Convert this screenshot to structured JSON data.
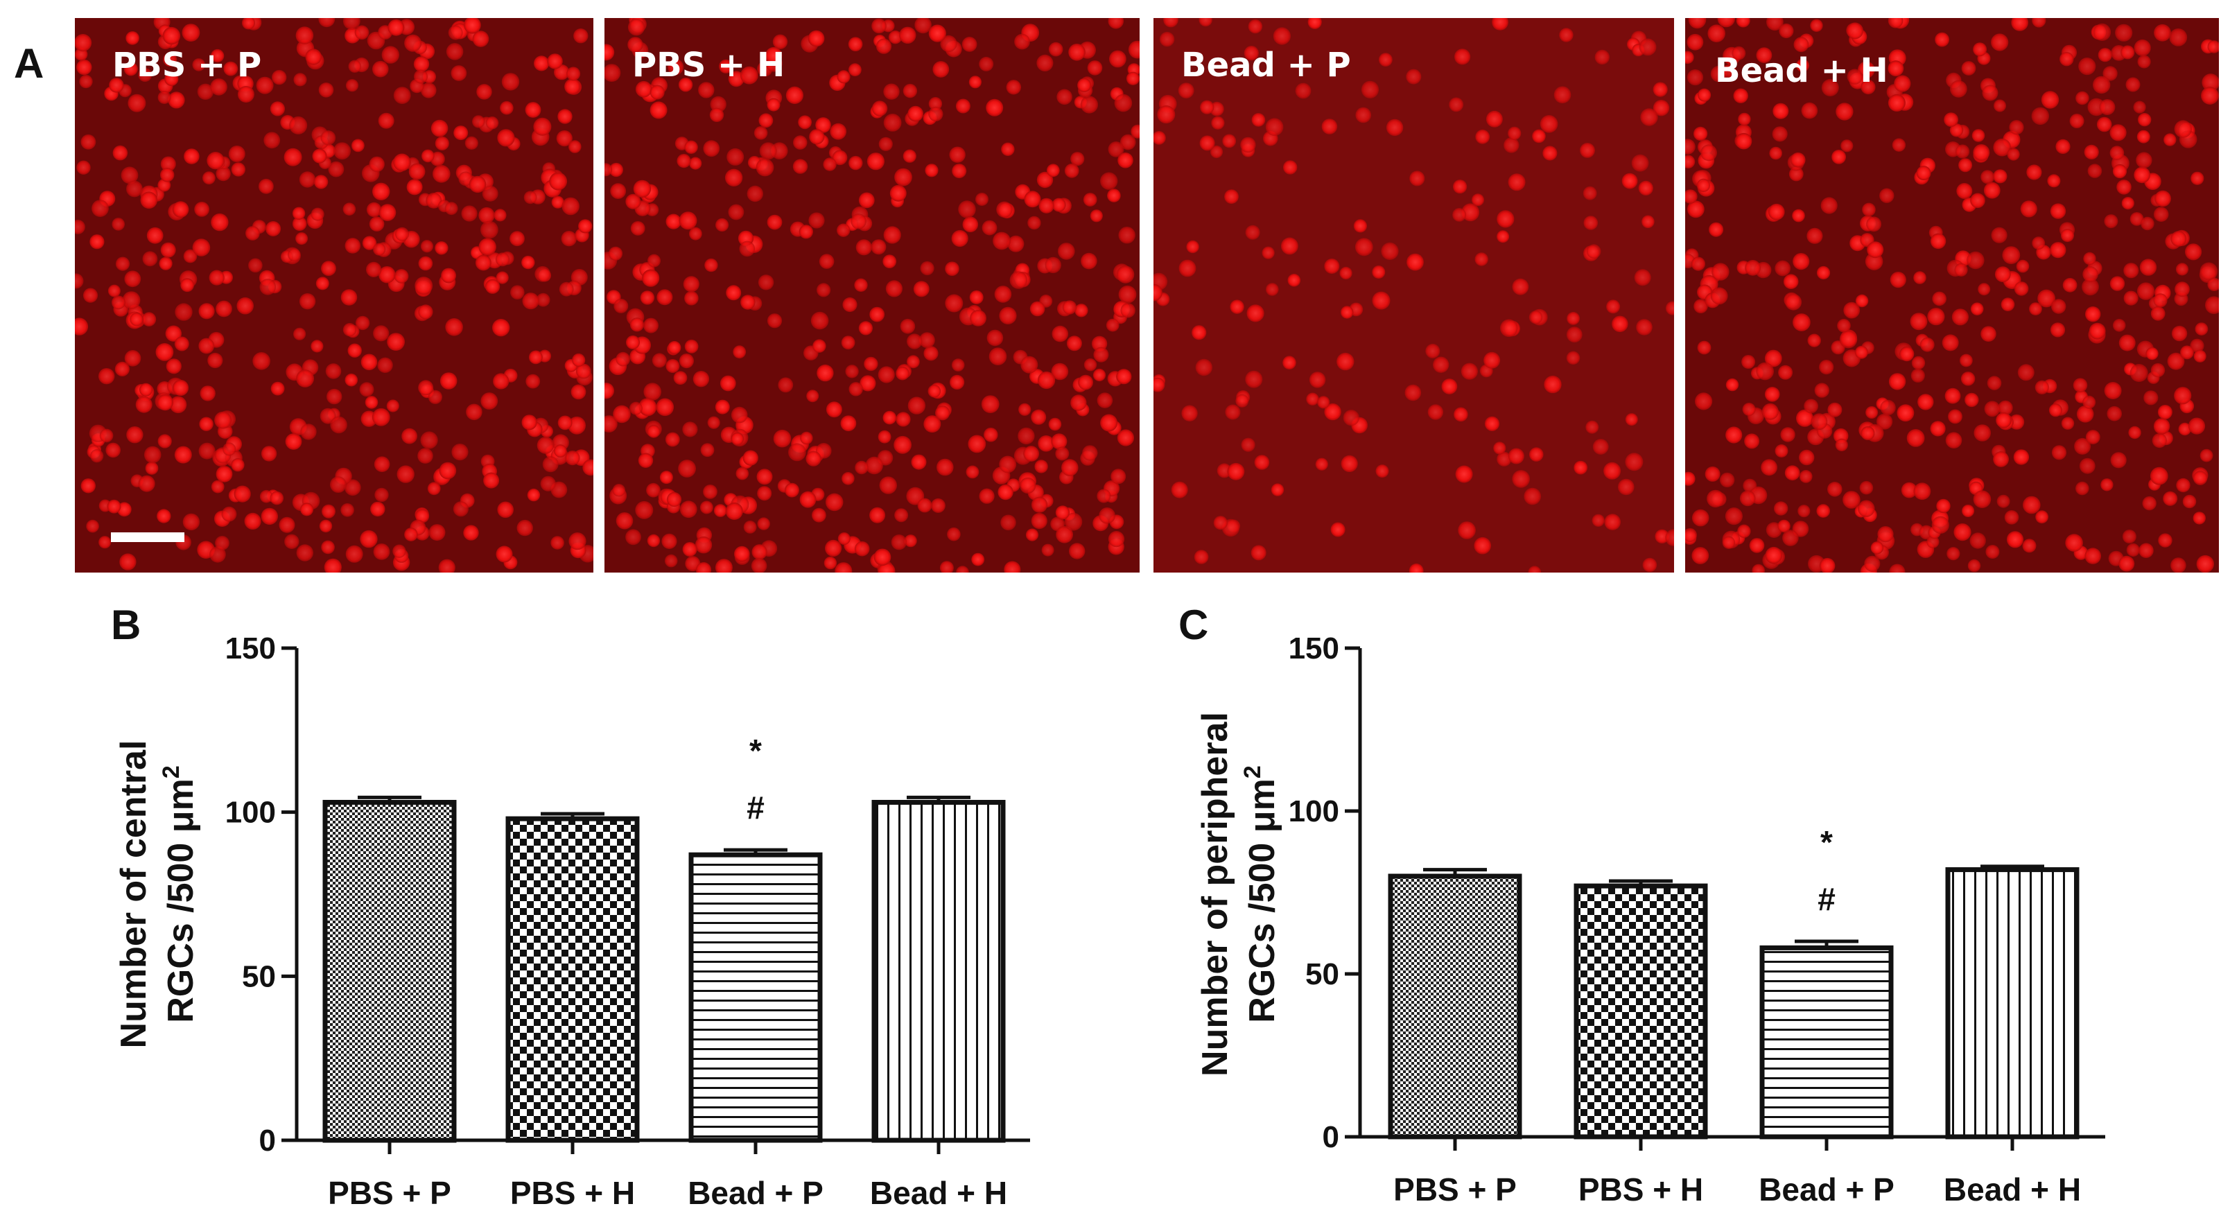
{
  "figure": {
    "panel_a": {
      "letter": "A",
      "images": [
        {
          "label": "PBS + P",
          "density": "high",
          "color": "#ff1a1a"
        },
        {
          "label": "PBS + H",
          "density": "high",
          "color": "#ff1a1a"
        },
        {
          "label": "Bead + P",
          "density": "low",
          "color": "#ff1a1a"
        },
        {
          "label": "Bead + H",
          "density": "high",
          "color": "#ff1a1a"
        }
      ],
      "background_color": "#6a0808",
      "has_scale_bar": true
    }
  },
  "chart_data": [
    {
      "type": "bar",
      "panel": "B",
      "categories": [
        "PBS + P",
        "PBS + H",
        "Bead + P",
        "Bead + H"
      ],
      "values": [
        103,
        98,
        87,
        103
      ],
      "errors": [
        1.5,
        1.5,
        1.5,
        1.5
      ],
      "patterns": [
        "dots",
        "checker",
        "horizontal-lines",
        "vertical-lines"
      ],
      "annotations": [
        {
          "category": "Bead + P",
          "marks": [
            "*",
            "#"
          ]
        }
      ],
      "ylabel_line1": "Number of central",
      "ylabel_line2": "RGCs /500 μm",
      "ylabel_sup": "2",
      "ylim": [
        0,
        150
      ],
      "yticks": [
        0,
        50,
        100,
        150
      ],
      "grid": false
    },
    {
      "type": "bar",
      "panel": "C",
      "categories": [
        "PBS + P",
        "PBS + H",
        "Bead + P",
        "Bead + H"
      ],
      "values": [
        80,
        77,
        58,
        82
      ],
      "errors": [
        2,
        1.5,
        2,
        1
      ],
      "patterns": [
        "dots",
        "checker",
        "horizontal-lines",
        "vertical-lines"
      ],
      "annotations": [
        {
          "category": "Bead + P",
          "marks": [
            "*",
            "#"
          ]
        }
      ],
      "ylabel_line1": "Number of peripheral",
      "ylabel_line2": "RGCs /500 μm",
      "ylabel_sup": "2",
      "ylim": [
        0,
        150
      ],
      "yticks": [
        0,
        50,
        100,
        150
      ],
      "grid": false
    }
  ]
}
